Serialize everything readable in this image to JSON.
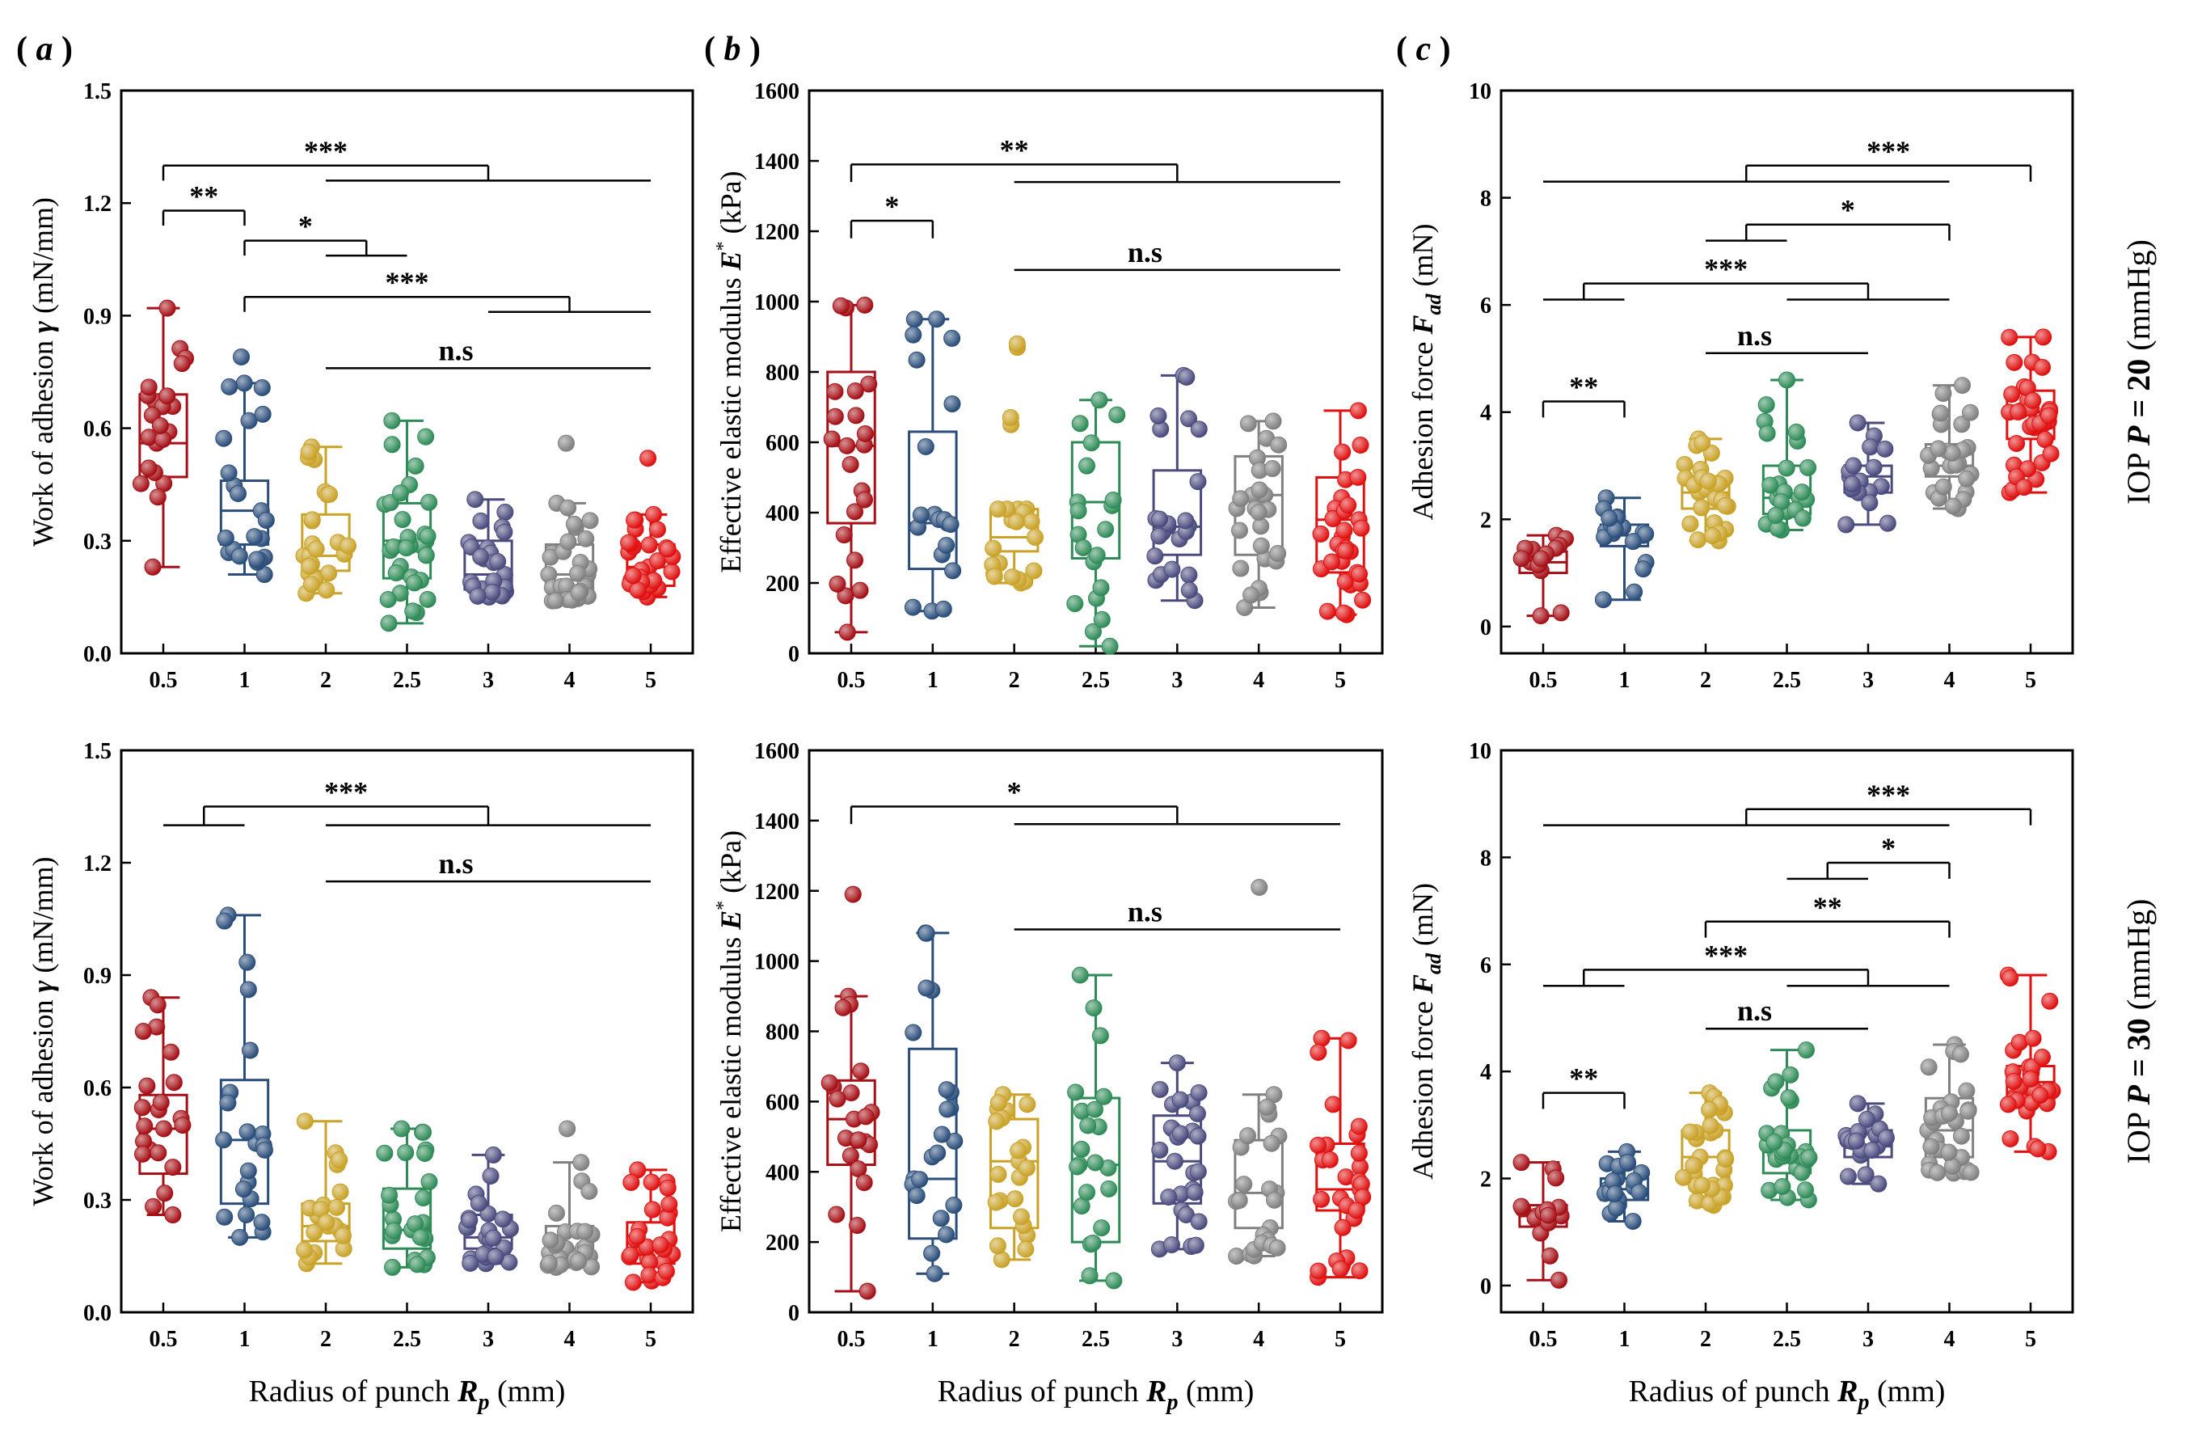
{
  "figure": {
    "x_label_prefix": "Radius of punch ",
    "x_label_var": "R",
    "x_label_sub": "p",
    "x_label_suffix": " (mm)",
    "row_labels": [
      {
        "prefix": "IOP  ",
        "var": "P",
        "value": " = 20",
        "unit": " (mmHg)"
      },
      {
        "prefix": "IOP  ",
        "var": "P",
        "value": " = 30",
        "unit": " (mmHg)"
      }
    ]
  },
  "chart_data": [
    {
      "id": "a-top",
      "panel_label": "a",
      "row": 0,
      "col": 0,
      "type": "box",
      "categories": [
        "0.5",
        "1",
        "2",
        "2.5",
        "3",
        "4",
        "5"
      ],
      "colors": [
        "#a50f15",
        "#2a4d7a",
        "#c9a227",
        "#2e8b57",
        "#4a4a7e",
        "#808080",
        "#e01010"
      ],
      "ylabel_prefix": "Work of adhesion ",
      "ylabel_var": "γ",
      "ylabel_suffix": " (mN/mm)",
      "ylim": [
        0,
        1.5
      ],
      "yticks": [
        0.0,
        0.3,
        0.6,
        0.9,
        1.2,
        1.5
      ],
      "ytick_labels": [
        "0.0",
        "0.3",
        "0.6",
        "0.9",
        "1.2",
        "1.5"
      ],
      "boxes": [
        {
          "whisker_low": 0.23,
          "q1": 0.47,
          "median": 0.56,
          "q3": 0.69,
          "whisker_high": 0.92,
          "n": 22,
          "outliers": []
        },
        {
          "whisker_low": 0.21,
          "q1": 0.29,
          "median": 0.38,
          "q3": 0.46,
          "whisker_high": 0.72,
          "n": 22,
          "outliers": [
            0.79
          ]
        },
        {
          "whisker_low": 0.16,
          "q1": 0.22,
          "median": 0.26,
          "q3": 0.37,
          "whisker_high": 0.55,
          "n": 24,
          "outliers": []
        },
        {
          "whisker_low": 0.08,
          "q1": 0.2,
          "median": 0.3,
          "q3": 0.4,
          "whisker_high": 0.62,
          "n": 32,
          "outliers": []
        },
        {
          "whisker_low": 0.15,
          "q1": 0.17,
          "median": 0.21,
          "q3": 0.3,
          "whisker_high": 0.41,
          "n": 26,
          "outliers": []
        },
        {
          "whisker_low": 0.14,
          "q1": 0.17,
          "median": 0.21,
          "q3": 0.29,
          "whisker_high": 0.4,
          "n": 30,
          "outliers": [
            0.56
          ]
        },
        {
          "whisker_low": 0.15,
          "q1": 0.18,
          "median": 0.23,
          "q3": 0.29,
          "whisker_high": 0.37,
          "n": 30,
          "outliers": [
            0.52
          ]
        }
      ],
      "brackets": [
        {
          "label": "***",
          "y": 1.3,
          "left": [
            0
          ],
          "right": [
            2,
            6
          ],
          "drop": 0.04
        },
        {
          "label": "**",
          "y": 1.18,
          "left": [
            0
          ],
          "right": [
            1
          ],
          "drop": 0.04
        },
        {
          "label": "*",
          "y": 1.1,
          "left": [
            1
          ],
          "right": [
            2,
            3
          ],
          "drop": 0.04
        },
        {
          "label": "***",
          "y": 0.95,
          "left": [
            1
          ],
          "right": [
            4,
            6
          ],
          "drop": 0.04
        },
        {
          "label": "n.s",
          "y": 0.76,
          "left": [
            2
          ],
          "right": [
            6
          ],
          "drop": 0
        }
      ]
    },
    {
      "id": "b-top",
      "panel_label": "b",
      "row": 0,
      "col": 1,
      "type": "box",
      "categories": [
        "0.5",
        "1",
        "2",
        "2.5",
        "3",
        "4",
        "5"
      ],
      "colors": [
        "#a50f15",
        "#2a4d7a",
        "#c9a227",
        "#2e8b57",
        "#4a4a7e",
        "#808080",
        "#e01010"
      ],
      "ylabel_prefix": "Effective elastic modulus ",
      "ylabel_var": "E",
      "ylabel_sup": "*",
      "ylabel_suffix": " (kPa)",
      "ylim": [
        0,
        1600
      ],
      "yticks": [
        0,
        200,
        400,
        600,
        800,
        1000,
        1200,
        1400,
        1600
      ],
      "ytick_labels": [
        "0",
        "200",
        "400",
        "600",
        "800",
        "1000",
        "1200",
        "1400",
        "1600"
      ],
      "boxes": [
        {
          "whisker_low": 60,
          "q1": 370,
          "median": 590,
          "q3": 800,
          "whisker_high": 990,
          "n": 22,
          "outliers": []
        },
        {
          "whisker_low": 120,
          "q1": 240,
          "median": 370,
          "q3": 630,
          "whisker_high": 950,
          "n": 20,
          "outliers": []
        },
        {
          "whisker_low": 200,
          "q1": 290,
          "median": 330,
          "q3": 410,
          "whisker_high": 410,
          "n": 20,
          "outliers": [
            650,
            670,
            870,
            880
          ]
        },
        {
          "whisker_low": 20,
          "q1": 270,
          "median": 430,
          "q3": 600,
          "whisker_high": 720,
          "n": 20,
          "outliers": []
        },
        {
          "whisker_low": 150,
          "q1": 280,
          "median": 360,
          "q3": 520,
          "whisker_high": 790,
          "n": 24,
          "outliers": []
        },
        {
          "whisker_low": 130,
          "q1": 280,
          "median": 450,
          "q3": 560,
          "whisker_high": 660,
          "n": 26,
          "outliers": []
        },
        {
          "whisker_low": 110,
          "q1": 230,
          "median": 380,
          "q3": 500,
          "whisker_high": 690,
          "n": 32,
          "outliers": []
        }
      ],
      "brackets": [
        {
          "label": "**",
          "y": 1390,
          "left": [
            0
          ],
          "right": [
            2,
            6
          ],
          "drop": 50
        },
        {
          "label": "*",
          "y": 1230,
          "left": [
            0
          ],
          "right": [
            1
          ],
          "drop": 50
        },
        {
          "label": "n.s",
          "y": 1090,
          "left": [
            2
          ],
          "right": [
            6
          ],
          "drop": 0
        }
      ]
    },
    {
      "id": "c-top",
      "panel_label": "c",
      "row": 0,
      "col": 2,
      "type": "box",
      "categories": [
        "0.5",
        "1",
        "2",
        "2.5",
        "3",
        "4",
        "5"
      ],
      "colors": [
        "#a50f15",
        "#2a4d7a",
        "#c9a227",
        "#2e8b57",
        "#4a4a7e",
        "#808080",
        "#e01010"
      ],
      "ylabel_prefix": "Adhesion force ",
      "ylabel_var": "F",
      "ylabel_sub": "ad",
      "ylabel_suffix": " (mN)",
      "ylim": [
        -0.5,
        10
      ],
      "yticks": [
        0,
        2,
        4,
        6,
        8,
        10
      ],
      "ytick_labels": [
        "0",
        "2",
        "4",
        "6",
        "8",
        "10"
      ],
      "boxes": [
        {
          "whisker_low": 0.2,
          "q1": 1.0,
          "median": 1.2,
          "q3": 1.4,
          "whisker_high": 1.7,
          "n": 16,
          "outliers": []
        },
        {
          "whisker_low": 0.5,
          "q1": 1.5,
          "median": 1.7,
          "q3": 1.9,
          "whisker_high": 2.4,
          "n": 20,
          "outliers": []
        },
        {
          "whisker_low": 1.6,
          "q1": 2.2,
          "median": 2.5,
          "q3": 2.8,
          "whisker_high": 3.5,
          "n": 28,
          "outliers": []
        },
        {
          "whisker_low": 1.8,
          "q1": 2.1,
          "median": 2.4,
          "q3": 3.0,
          "whisker_high": 4.6,
          "n": 26,
          "outliers": []
        },
        {
          "whisker_low": 1.9,
          "q1": 2.5,
          "median": 2.8,
          "q3": 3.0,
          "whisker_high": 3.8,
          "n": 18,
          "outliers": []
        },
        {
          "whisker_low": 2.2,
          "q1": 2.8,
          "median": 3.0,
          "q3": 3.4,
          "whisker_high": 4.5,
          "n": 26,
          "outliers": []
        },
        {
          "whisker_low": 2.5,
          "q1": 3.5,
          "median": 4.0,
          "q3": 4.4,
          "whisker_high": 5.4,
          "n": 36,
          "outliers": []
        }
      ],
      "brackets": [
        {
          "label": "***",
          "y": 8.6,
          "left": [
            0,
            5
          ],
          "right": [
            6
          ],
          "drop": 0.3
        },
        {
          "label": "*",
          "y": 7.5,
          "left": [
            2,
            3
          ],
          "right": [
            5
          ],
          "drop": 0.3
        },
        {
          "label": "***",
          "y": 6.4,
          "left": [
            0,
            1
          ],
          "right": [
            3,
            5
          ],
          "drop": 0.3
        },
        {
          "label": "n.s",
          "y": 5.1,
          "left": [
            2
          ],
          "right": [
            4
          ],
          "drop": 0
        },
        {
          "label": "**",
          "y": 4.2,
          "left": [
            0
          ],
          "right": [
            1
          ],
          "drop": 0.3
        }
      ]
    },
    {
      "id": "a-bottom",
      "panel_label": "",
      "row": 1,
      "col": 0,
      "type": "box",
      "categories": [
        "0.5",
        "1",
        "2",
        "2.5",
        "3",
        "4",
        "5"
      ],
      "colors": [
        "#a50f15",
        "#2a4d7a",
        "#c9a227",
        "#2e8b57",
        "#4a4a7e",
        "#808080",
        "#e01010"
      ],
      "ylabel_prefix": "Work of adhesion ",
      "ylabel_var": "γ",
      "ylabel_suffix": " (mN/mm)",
      "ylim": [
        0,
        1.5
      ],
      "yticks": [
        0.0,
        0.3,
        0.6,
        0.9,
        1.2,
        1.5
      ],
      "ytick_labels": [
        "0.0",
        "0.3",
        "0.6",
        "0.9",
        "1.2",
        "1.5"
      ],
      "boxes": [
        {
          "whisker_low": 0.26,
          "q1": 0.37,
          "median": 0.49,
          "q3": 0.58,
          "whisker_high": 0.84,
          "n": 22,
          "outliers": []
        },
        {
          "whisker_low": 0.2,
          "q1": 0.29,
          "median": 0.46,
          "q3": 0.62,
          "whisker_high": 1.06,
          "n": 22,
          "outliers": []
        },
        {
          "whisker_low": 0.13,
          "q1": 0.19,
          "median": 0.23,
          "q3": 0.29,
          "whisker_high": 0.51,
          "n": 22,
          "outliers": []
        },
        {
          "whisker_low": 0.12,
          "q1": 0.17,
          "median": 0.22,
          "q3": 0.33,
          "whisker_high": 0.49,
          "n": 24,
          "outliers": []
        },
        {
          "whisker_low": 0.13,
          "q1": 0.17,
          "median": 0.2,
          "q3": 0.26,
          "whisker_high": 0.42,
          "n": 24,
          "outliers": []
        },
        {
          "whisker_low": 0.12,
          "q1": 0.14,
          "median": 0.17,
          "q3": 0.23,
          "whisker_high": 0.4,
          "n": 26,
          "outliers": [
            0.49
          ]
        },
        {
          "whisker_low": 0.08,
          "q1": 0.13,
          "median": 0.17,
          "q3": 0.24,
          "whisker_high": 0.38,
          "n": 30,
          "outliers": []
        }
      ],
      "brackets": [
        {
          "label": "***",
          "y": 1.35,
          "left": [
            0,
            1
          ],
          "right": [
            2,
            6
          ],
          "drop": 0.05
        },
        {
          "label": "n.s",
          "y": 1.15,
          "left": [
            2
          ],
          "right": [
            6
          ],
          "drop": 0
        }
      ]
    },
    {
      "id": "b-bottom",
      "panel_label": "",
      "row": 1,
      "col": 1,
      "type": "box",
      "categories": [
        "0.5",
        "1",
        "2",
        "2.5",
        "3",
        "4",
        "5"
      ],
      "colors": [
        "#a50f15",
        "#2a4d7a",
        "#c9a227",
        "#2e8b57",
        "#4a4a7e",
        "#808080",
        "#e01010"
      ],
      "ylabel_prefix": "Effective elastic modulus ",
      "ylabel_var": "E",
      "ylabel_sup": "*",
      "ylabel_suffix": " (kPa)",
      "ylim": [
        0,
        1600
      ],
      "yticks": [
        0,
        200,
        400,
        600,
        800,
        1000,
        1200,
        1400,
        1600
      ],
      "ytick_labels": [
        "0",
        "200",
        "400",
        "600",
        "800",
        "1000",
        "1200",
        "1400",
        "1600"
      ],
      "boxes": [
        {
          "whisker_low": 60,
          "q1": 420,
          "median": 550,
          "q3": 660,
          "whisker_high": 900,
          "n": 22,
          "outliers": [
            1190
          ]
        },
        {
          "whisker_low": 110,
          "q1": 210,
          "median": 380,
          "q3": 750,
          "whisker_high": 1080,
          "n": 22,
          "outliers": []
        },
        {
          "whisker_low": 150,
          "q1": 240,
          "median": 430,
          "q3": 550,
          "whisker_high": 620,
          "n": 22,
          "outliers": []
        },
        {
          "whisker_low": 90,
          "q1": 200,
          "median": 420,
          "q3": 610,
          "whisker_high": 960,
          "n": 22,
          "outliers": []
        },
        {
          "whisker_low": 180,
          "q1": 310,
          "median": 430,
          "q3": 560,
          "whisker_high": 710,
          "n": 28,
          "outliers": []
        },
        {
          "whisker_low": 160,
          "q1": 240,
          "median": 340,
          "q3": 490,
          "whisker_high": 620,
          "n": 24,
          "outliers": [
            1210
          ]
        },
        {
          "whisker_low": 100,
          "q1": 290,
          "median": 350,
          "q3": 480,
          "whisker_high": 780,
          "n": 30,
          "outliers": []
        }
      ],
      "brackets": [
        {
          "label": "*",
          "y": 1440,
          "left": [
            0
          ],
          "right": [
            2,
            6
          ],
          "drop": 50
        },
        {
          "label": "n.s",
          "y": 1090,
          "left": [
            2
          ],
          "right": [
            6
          ],
          "drop": 0
        }
      ]
    },
    {
      "id": "c-bottom",
      "panel_label": "",
      "row": 1,
      "col": 2,
      "type": "box",
      "categories": [
        "0.5",
        "1",
        "2",
        "2.5",
        "3",
        "4",
        "5"
      ],
      "colors": [
        "#a50f15",
        "#2a4d7a",
        "#c9a227",
        "#2e8b57",
        "#4a4a7e",
        "#808080",
        "#e01010"
      ],
      "ylabel_prefix": "Adhesion force ",
      "ylabel_var": "F",
      "ylabel_sub": "ad",
      "ylabel_suffix": " (mN)",
      "ylim": [
        -0.5,
        10
      ],
      "yticks": [
        0,
        2,
        4,
        6,
        8,
        10
      ],
      "ytick_labels": [
        "0",
        "2",
        "4",
        "6",
        "8",
        "10"
      ],
      "boxes": [
        {
          "whisker_low": 0.1,
          "q1": 1.1,
          "median": 1.3,
          "q3": 1.5,
          "whisker_high": 2.3,
          "n": 16,
          "outliers": []
        },
        {
          "whisker_low": 1.2,
          "q1": 1.6,
          "median": 1.8,
          "q3": 2.0,
          "whisker_high": 2.5,
          "n": 22,
          "outliers": []
        },
        {
          "whisker_low": 1.5,
          "q1": 1.9,
          "median": 2.4,
          "q3": 2.9,
          "whisker_high": 3.6,
          "n": 30,
          "outliers": []
        },
        {
          "whisker_low": 1.6,
          "q1": 2.1,
          "median": 2.5,
          "q3": 2.9,
          "whisker_high": 4.4,
          "n": 30,
          "outliers": []
        },
        {
          "whisker_low": 1.9,
          "q1": 2.4,
          "median": 2.6,
          "q3": 2.9,
          "whisker_high": 3.4,
          "n": 22,
          "outliers": []
        },
        {
          "whisker_low": 2.1,
          "q1": 2.4,
          "median": 2.9,
          "q3": 3.5,
          "whisker_high": 4.5,
          "n": 30,
          "outliers": []
        },
        {
          "whisker_low": 2.5,
          "q1": 3.4,
          "median": 3.8,
          "q3": 4.1,
          "whisker_high": 5.8,
          "n": 34,
          "outliers": []
        }
      ],
      "brackets": [
        {
          "label": "***",
          "y": 8.9,
          "left": [
            0,
            5
          ],
          "right": [
            6
          ],
          "drop": 0.3
        },
        {
          "label": "*",
          "y": 7.9,
          "left": [
            3,
            4
          ],
          "right": [
            5
          ],
          "drop": 0.3
        },
        {
          "label": "**",
          "y": 6.8,
          "left": [
            2
          ],
          "right": [
            5
          ],
          "drop": 0.3
        },
        {
          "label": "***",
          "y": 5.9,
          "left": [
            0,
            1
          ],
          "right": [
            3,
            5
          ],
          "drop": 0.3
        },
        {
          "label": "n.s",
          "y": 4.8,
          "left": [
            2
          ],
          "right": [
            4
          ],
          "drop": 0
        },
        {
          "label": "**",
          "y": 3.6,
          "left": [
            0
          ],
          "right": [
            1
          ],
          "drop": 0.3
        }
      ]
    }
  ]
}
